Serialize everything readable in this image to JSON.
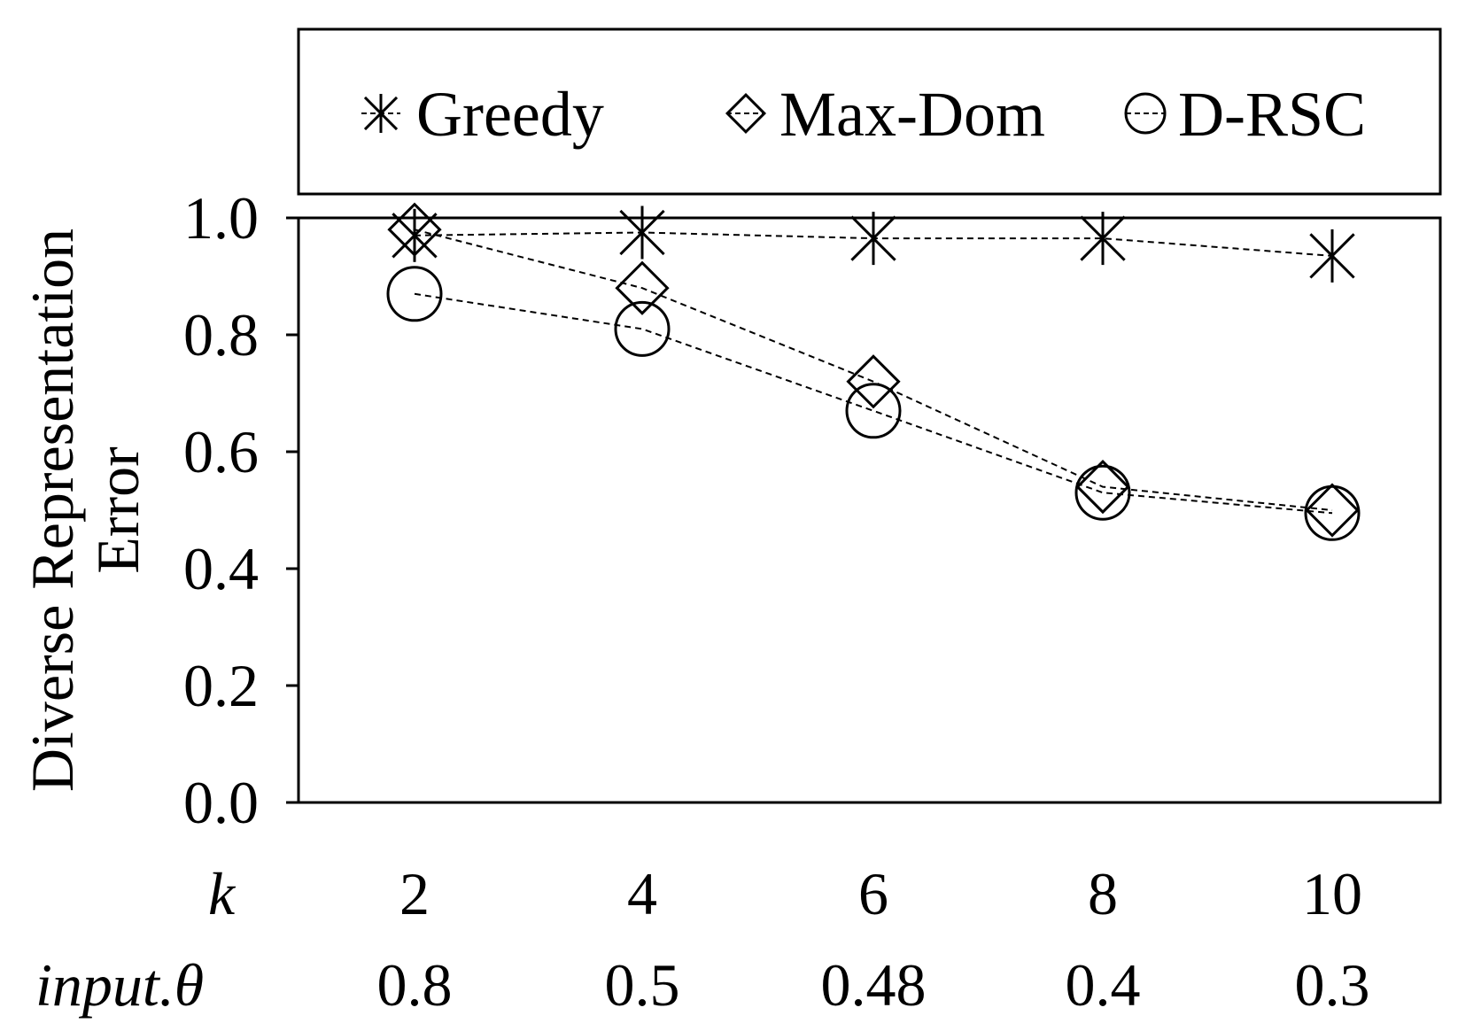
{
  "chart_data": {
    "type": "line",
    "title": "",
    "ylabel_lines": [
      "Diverse Representation",
      "Error"
    ],
    "ylim": [
      0.0,
      1.0
    ],
    "yticks": [
      0.0,
      0.2,
      0.4,
      0.6,
      0.8,
      1.0
    ],
    "ytick_labels": [
      "0.0",
      "0.2",
      "0.4",
      "0.6",
      "0.8",
      "1.0"
    ],
    "x": [
      2,
      4,
      6,
      8,
      10
    ],
    "xlabel": "k",
    "xtick_labels": [
      "2",
      "4",
      "6",
      "8",
      "10"
    ],
    "secondary_label": "input.θ",
    "secondary_tick_labels": [
      "0.8",
      "0.5",
      "0.48",
      "0.4",
      "0.3"
    ],
    "legend_position": "top",
    "series": [
      {
        "name": "Greedy",
        "marker": "asterisk",
        "values": [
          0.97,
          0.975,
          0.965,
          0.965,
          0.935
        ]
      },
      {
        "name": "Max-Dom",
        "marker": "diamond",
        "values": [
          0.98,
          0.88,
          0.72,
          0.54,
          0.5
        ]
      },
      {
        "name": "D-RSC",
        "marker": "circle",
        "values": [
          0.87,
          0.81,
          0.67,
          0.53,
          0.495
        ]
      }
    ]
  }
}
